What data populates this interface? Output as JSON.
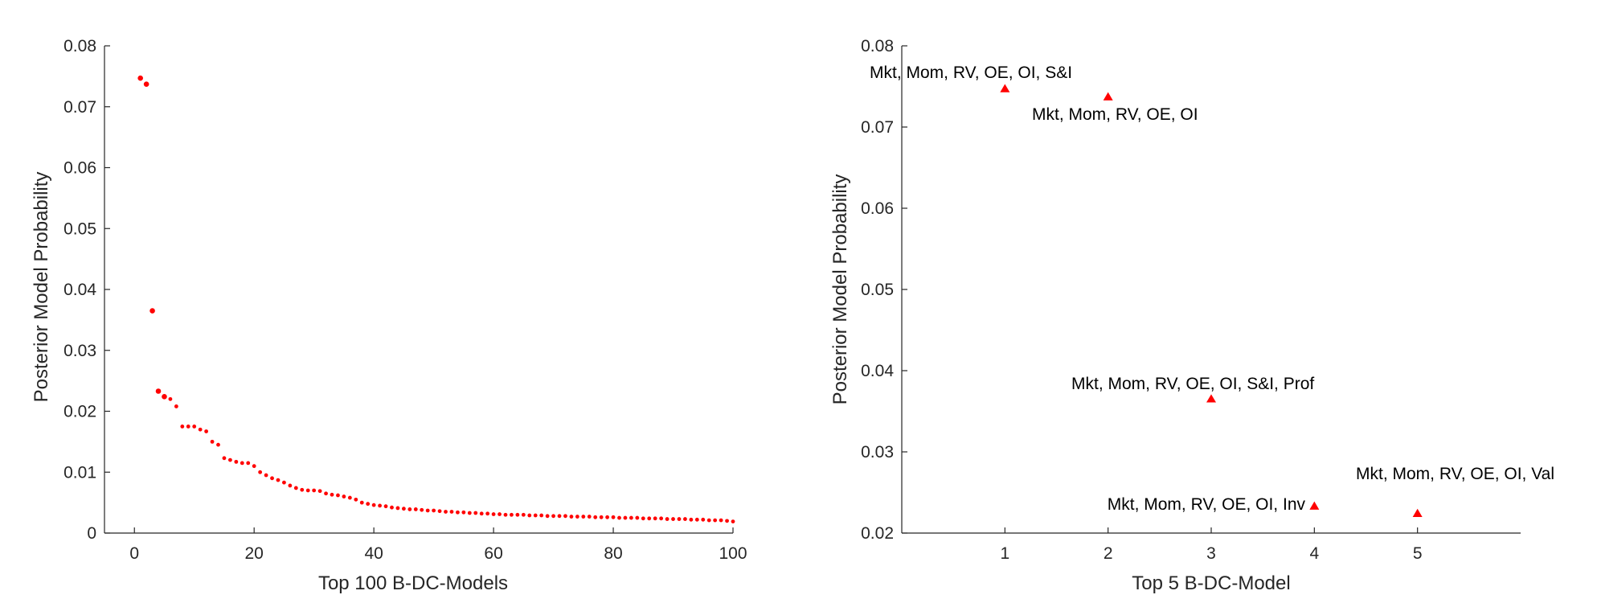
{
  "chart_data": [
    {
      "type": "scatter",
      "xlabel": "Top 100 B-DC-Models",
      "ylabel": "Posterior Model Probability",
      "xlim": [
        -5,
        100
      ],
      "ylim": [
        0,
        0.08
      ],
      "xticks": [
        0,
        20,
        40,
        60,
        80,
        100
      ],
      "yticks": [
        0,
        0.01,
        0.02,
        0.03,
        0.04,
        0.05,
        0.06,
        0.07,
        0.08
      ],
      "grid": false,
      "marker": "dot",
      "color": "#ff0000",
      "x": [
        1,
        2,
        3,
        4,
        5,
        6,
        7,
        8,
        9,
        10,
        11,
        12,
        13,
        14,
        15,
        16,
        17,
        18,
        19,
        20,
        21,
        22,
        23,
        24,
        25,
        26,
        27,
        28,
        29,
        30,
        31,
        32,
        33,
        34,
        35,
        36,
        37,
        38,
        39,
        40,
        41,
        42,
        43,
        44,
        45,
        46,
        47,
        48,
        49,
        50,
        51,
        52,
        53,
        54,
        55,
        56,
        57,
        58,
        59,
        60,
        61,
        62,
        63,
        64,
        65,
        66,
        67,
        68,
        69,
        70,
        71,
        72,
        73,
        74,
        75,
        76,
        77,
        78,
        79,
        80,
        81,
        82,
        83,
        84,
        85,
        86,
        87,
        88,
        89,
        90,
        91,
        92,
        93,
        94,
        95,
        96,
        97,
        98,
        99,
        100
      ],
      "y": [
        0.0747,
        0.0737,
        0.0365,
        0.0233,
        0.0224,
        0.022,
        0.0208,
        0.0175,
        0.0175,
        0.0175,
        0.017,
        0.0167,
        0.015,
        0.0145,
        0.0123,
        0.012,
        0.0117,
        0.0115,
        0.0115,
        0.011,
        0.01,
        0.0095,
        0.009,
        0.0087,
        0.0083,
        0.0078,
        0.0074,
        0.0071,
        0.007,
        0.007,
        0.0069,
        0.0065,
        0.0063,
        0.0062,
        0.006,
        0.0058,
        0.0055,
        0.005,
        0.0048,
        0.0046,
        0.0045,
        0.0044,
        0.0042,
        0.0041,
        0.004,
        0.0039,
        0.0039,
        0.0038,
        0.0037,
        0.0037,
        0.0036,
        0.0035,
        0.0035,
        0.0034,
        0.0034,
        0.0033,
        0.0033,
        0.0032,
        0.0032,
        0.0031,
        0.0031,
        0.003,
        0.003,
        0.003,
        0.003,
        0.0029,
        0.0029,
        0.0029,
        0.0028,
        0.0028,
        0.0028,
        0.0028,
        0.0027,
        0.0027,
        0.0027,
        0.0027,
        0.0026,
        0.0026,
        0.0026,
        0.0026,
        0.0025,
        0.0025,
        0.0025,
        0.0025,
        0.0024,
        0.0024,
        0.0024,
        0.0024,
        0.0023,
        0.0023,
        0.0023,
        0.0023,
        0.0022,
        0.0022,
        0.0022,
        0.0021,
        0.0021,
        0.0021,
        0.002,
        0.0019
      ]
    },
    {
      "type": "scatter",
      "xlabel": "Top 5 B-DC-Model",
      "ylabel": "Posterior Model Probability",
      "xlim": [
        0,
        6
      ],
      "ylim": [
        0.02,
        0.08
      ],
      "xticks": [
        1,
        2,
        3,
        4,
        5
      ],
      "yticks": [
        0.02,
        0.03,
        0.04,
        0.05,
        0.06,
        0.07,
        0.08
      ],
      "grid": false,
      "marker": "triangle",
      "color": "#ff0000",
      "x": [
        1,
        2,
        3,
        4,
        5
      ],
      "y": [
        0.0747,
        0.0737,
        0.0365,
        0.0233,
        0.0224
      ],
      "annotations": [
        "Mkt, Mom, RV, OE, OI, S&I",
        "Mkt, Mom, RV, OE, OI",
        "Mkt, Mom, RV, OE, OI, S&I, Prof",
        "Mkt, Mom, RV, OE, OI, Inv",
        "Mkt, Mom, RV, OE, OI, Val"
      ]
    }
  ]
}
